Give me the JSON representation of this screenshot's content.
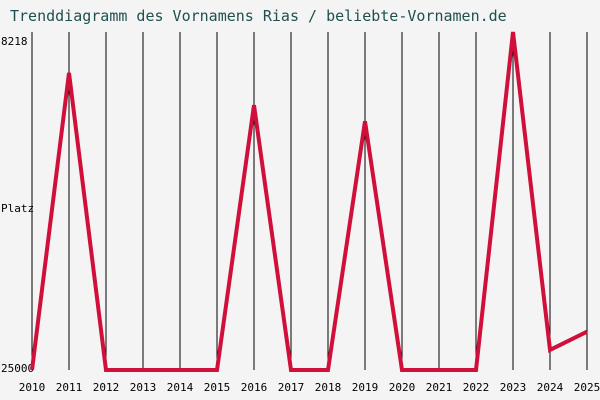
{
  "chart_data": {
    "type": "line",
    "title": "Trenddiagramm des Vornamens Rias / beliebte-Vornamen.de",
    "ylabel": "Platz",
    "y_axis": "reversed rank (top = 8218, bottom = 25000)",
    "ylim": [
      25000,
      8218
    ],
    "y_ticks": [
      "8218",
      "25000"
    ],
    "grid": "vertical lines at each year",
    "x": [
      "2010",
      "2011",
      "2012",
      "2013",
      "2014",
      "2015",
      "2016",
      "2017",
      "2018",
      "2019",
      "2020",
      "2021",
      "2022",
      "2023",
      "2024",
      "2025"
    ],
    "series": [
      {
        "values": [
          25000,
          10250,
          25000,
          25000,
          25000,
          25000,
          11850,
          25000,
          25000,
          12650,
          25000,
          25000,
          25000,
          8218,
          24000,
          23100
        ],
        "color": "#d0103a"
      }
    ]
  }
}
